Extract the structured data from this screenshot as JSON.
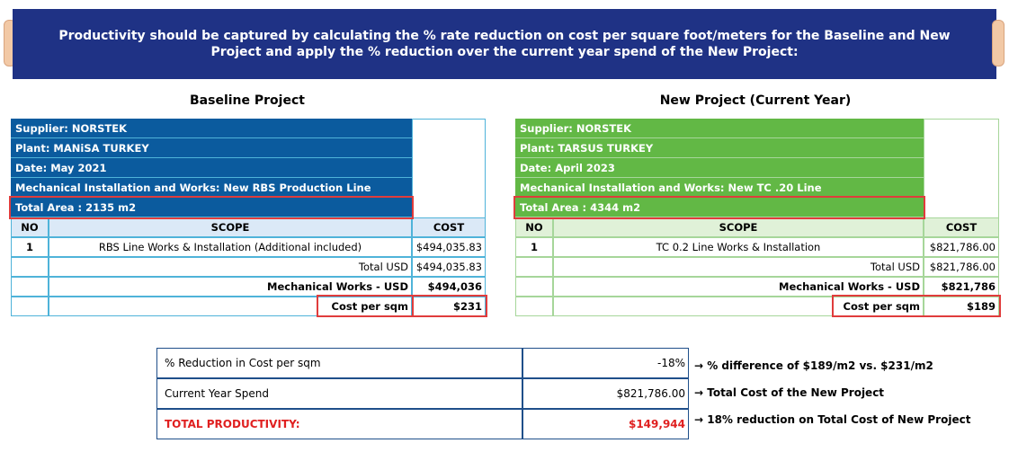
{
  "banner": {
    "text": "Productivity should be captured by calculating the % rate reduction on cost per square foot/meters for the Baseline and New Project and apply the % reduction over the current year spend of the New Project:"
  },
  "baseline": {
    "title": "Baseline Project",
    "supplier": "Supplier: NORSTEK",
    "plant": "Plant: MANiSA TURKEY",
    "date": "Date: May 2021",
    "mechanical": "Mechanical Installation and Works: New RBS Production Line",
    "area": "Total Area : 2135 m2",
    "headers": {
      "no": "NO",
      "scope": "SCOPE",
      "cost": "COST"
    },
    "row": {
      "no": "1",
      "scope": "RBS Line Works & Installation (Additional included)",
      "cost": "$494,035.83"
    },
    "total_label": "Total USD",
    "total_value": "$494,035.83",
    "mech_label": "Mechanical Works - USD",
    "mech_value": "$494,036",
    "cps_label": "Cost per sqm",
    "cps_value": "$231",
    "colors": {
      "header_fill": "#0b5b9e",
      "table_header": "#dbe9f7",
      "border": "#4fb3d9"
    }
  },
  "newproject": {
    "title": "New Project (Current Year)",
    "supplier": "Supplier: NORSTEK",
    "plant": "Plant: TARSUS TURKEY",
    "date": "Date: April 2023",
    "mechanical": "Mechanical Installation and Works: New TC .20 Line",
    "area": "Total Area : 4344 m2",
    "headers": {
      "no": "NO",
      "scope": "SCOPE",
      "cost": "COST"
    },
    "row": {
      "no": "1",
      "scope": "TC 0.2 Line Works & Installation",
      "cost": "$821,786.00"
    },
    "total_label": "Total USD",
    "total_value": "$821,786.00",
    "mech_label": "Mechanical Works - USD",
    "mech_value": "$821,786",
    "cps_label": "Cost per sqm",
    "cps_value": "$189",
    "colors": {
      "header_fill": "#62b845",
      "table_header": "#e0f1d8",
      "border": "#a6d69a"
    }
  },
  "summary": {
    "rows": [
      {
        "label": "% Reduction in Cost per sqm",
        "value": "-18%",
        "note": "→ % difference of $189/m2 vs. $231/m2"
      },
      {
        "label": "Current Year Spend",
        "value": "$821,786.00",
        "note": "→ Total Cost of the New Project"
      },
      {
        "label": "TOTAL PRODUCTIVITY:",
        "value": "$149,944",
        "note": "→ 18% reduction on Total Cost of New Project"
      }
    ]
  }
}
